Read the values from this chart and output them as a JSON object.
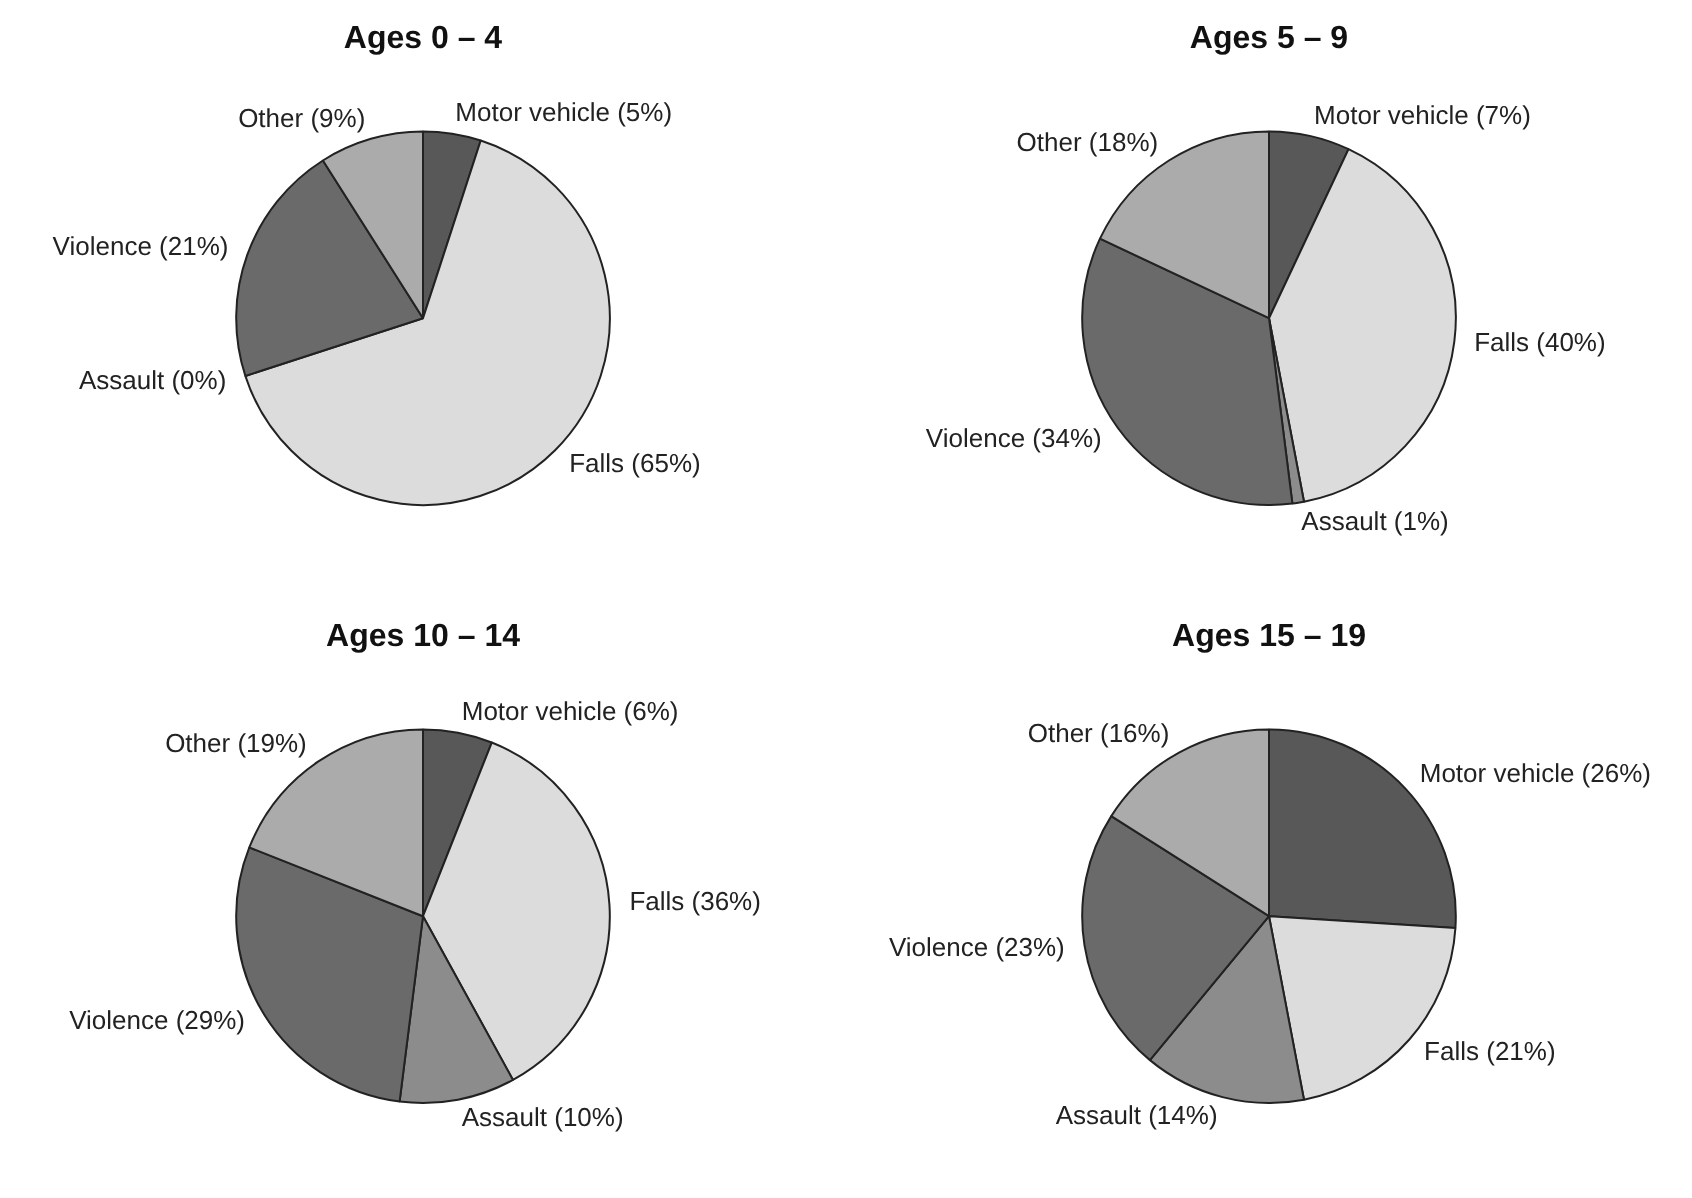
{
  "chart_data": [
    {
      "type": "pie",
      "title": "Ages 0 – 4",
      "categories": [
        "Motor vehicle",
        "Falls",
        "Assault",
        "Violence",
        "Other"
      ],
      "values": [
        5,
        65,
        0,
        21,
        9
      ],
      "value_labels": [
        "(5%)",
        "(65%)",
        "(0%)",
        "(21%)",
        "(9%)"
      ],
      "colors": [
        "#585858",
        "#dcdcdc",
        "#8c8c8c",
        "#6a6a6a",
        "#ababab"
      ]
    },
    {
      "type": "pie",
      "title": "Ages 5 – 9",
      "categories": [
        "Motor vehicle",
        "Falls",
        "Assault",
        "Violence",
        "Other"
      ],
      "values": [
        7,
        40,
        1,
        34,
        18
      ],
      "value_labels": [
        "(7%)",
        "(40%)",
        "(1%)",
        "(34%)",
        "(18%)"
      ],
      "colors": [
        "#585858",
        "#dcdcdc",
        "#8c8c8c",
        "#6a6a6a",
        "#ababab"
      ]
    },
    {
      "type": "pie",
      "title": "Ages 10 – 14",
      "categories": [
        "Motor vehicle",
        "Falls",
        "Assault",
        "Violence",
        "Other"
      ],
      "values": [
        6,
        36,
        10,
        29,
        19
      ],
      "value_labels": [
        "(6%)",
        "(36%)",
        "(10%)",
        "(29%)",
        "(19%)"
      ],
      "colors": [
        "#585858",
        "#dcdcdc",
        "#8c8c8c",
        "#6a6a6a",
        "#ababab"
      ]
    },
    {
      "type": "pie",
      "title": "Ages 15 – 19",
      "categories": [
        "Motor vehicle",
        "Falls",
        "Assault",
        "Violence",
        "Other"
      ],
      "values": [
        26,
        21,
        14,
        23,
        16
      ],
      "value_labels": [
        "(26%)",
        "(21%)",
        "(14%)",
        "(23%)",
        "(16%)"
      ],
      "colors": [
        "#585858",
        "#dcdcdc",
        "#8c8c8c",
        "#6a6a6a",
        "#ababab"
      ]
    }
  ]
}
